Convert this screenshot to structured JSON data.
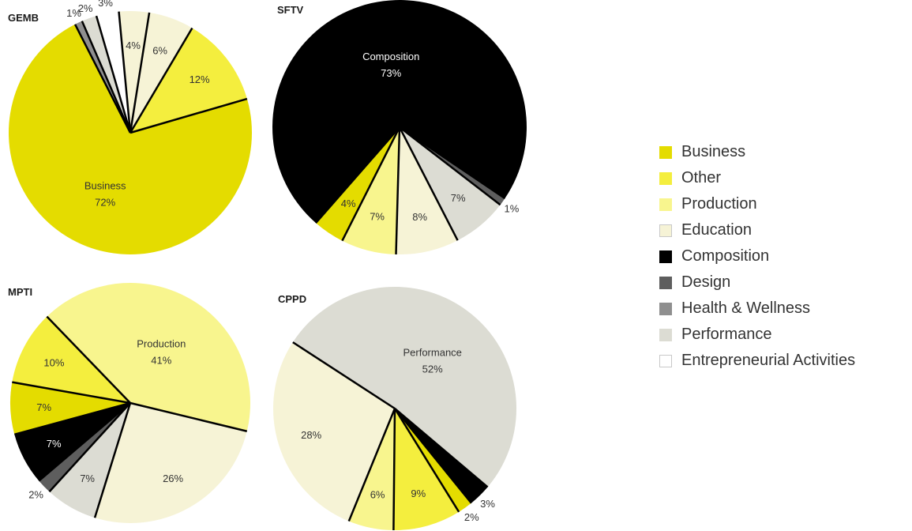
{
  "colors": {
    "Business": "#e4dc00",
    "Other": "#f4ee3e",
    "Production": "#f8f58e",
    "Education": "#f6f3d6",
    "Composition": "#000000",
    "Design": "#5e5e5e",
    "Health & Wellness": "#8f8f8f",
    "Performance": "#dcdcd3",
    "Entrepreneurial Activities": "#ffffff"
  },
  "legend": {
    "items": [
      "Business",
      "Other",
      "Production",
      "Education",
      "Composition",
      "Design",
      "Health & Wellness",
      "Performance",
      "Entrepreneurial Activities"
    ]
  },
  "chart_data": [
    {
      "type": "pie",
      "title": "GEMB",
      "slices": [
        {
          "category": "Business",
          "label": "Business",
          "value": 72,
          "value_label": "72%"
        },
        {
          "category": "Other",
          "value": 12,
          "value_label": "12%"
        },
        {
          "category": "Education",
          "value": 6,
          "value_label": "6%"
        },
        {
          "category": "Education",
          "value": 4,
          "value_label": "4%"
        },
        {
          "category": "Entrepreneurial Activities",
          "value": 3,
          "value_label": "3%"
        },
        {
          "category": "Performance",
          "value": 2,
          "value_label": "2%"
        },
        {
          "category": "Health & Wellness",
          "value": 1,
          "value_label": "1%"
        }
      ]
    },
    {
      "type": "pie",
      "title": "SFTV",
      "slices": [
        {
          "category": "Composition",
          "label": "Composition",
          "value": 73,
          "value_label": "73%"
        },
        {
          "category": "Business",
          "value": 4,
          "value_label": "4%"
        },
        {
          "category": "Production",
          "value": 7,
          "value_label": "7%"
        },
        {
          "category": "Education",
          "value": 8,
          "value_label": "8%"
        },
        {
          "category": "Performance",
          "value": 7,
          "value_label": "7%"
        },
        {
          "category": "Design",
          "value": 1,
          "value_label": "1%"
        }
      ]
    },
    {
      "type": "pie",
      "title": "MPTI",
      "slices": [
        {
          "category": "Production",
          "label": "Production",
          "value": 41,
          "value_label": "41%"
        },
        {
          "category": "Education",
          "value": 26,
          "value_label": "26%"
        },
        {
          "category": "Performance",
          "value": 7,
          "value_label": "7%"
        },
        {
          "category": "Design",
          "value": 2,
          "value_label": "2%"
        },
        {
          "category": "Composition",
          "value": 7,
          "value_label": "7%"
        },
        {
          "category": "Business",
          "value": 7,
          "value_label": "7%"
        },
        {
          "category": "Other",
          "value": 10,
          "value_label": "10%"
        }
      ]
    },
    {
      "type": "pie",
      "title": "CPPD",
      "slices": [
        {
          "category": "Performance",
          "label": "Performance",
          "value": 52,
          "value_label": "52%"
        },
        {
          "category": "Composition",
          "value": 3,
          "value_label": "3%"
        },
        {
          "category": "Business",
          "value": 2,
          "value_label": "2%"
        },
        {
          "category": "Other",
          "value": 9,
          "value_label": "9%"
        },
        {
          "category": "Production",
          "value": 6,
          "value_label": "6%"
        },
        {
          "category": "Education",
          "value": 28,
          "value_label": "28%"
        }
      ]
    }
  ]
}
